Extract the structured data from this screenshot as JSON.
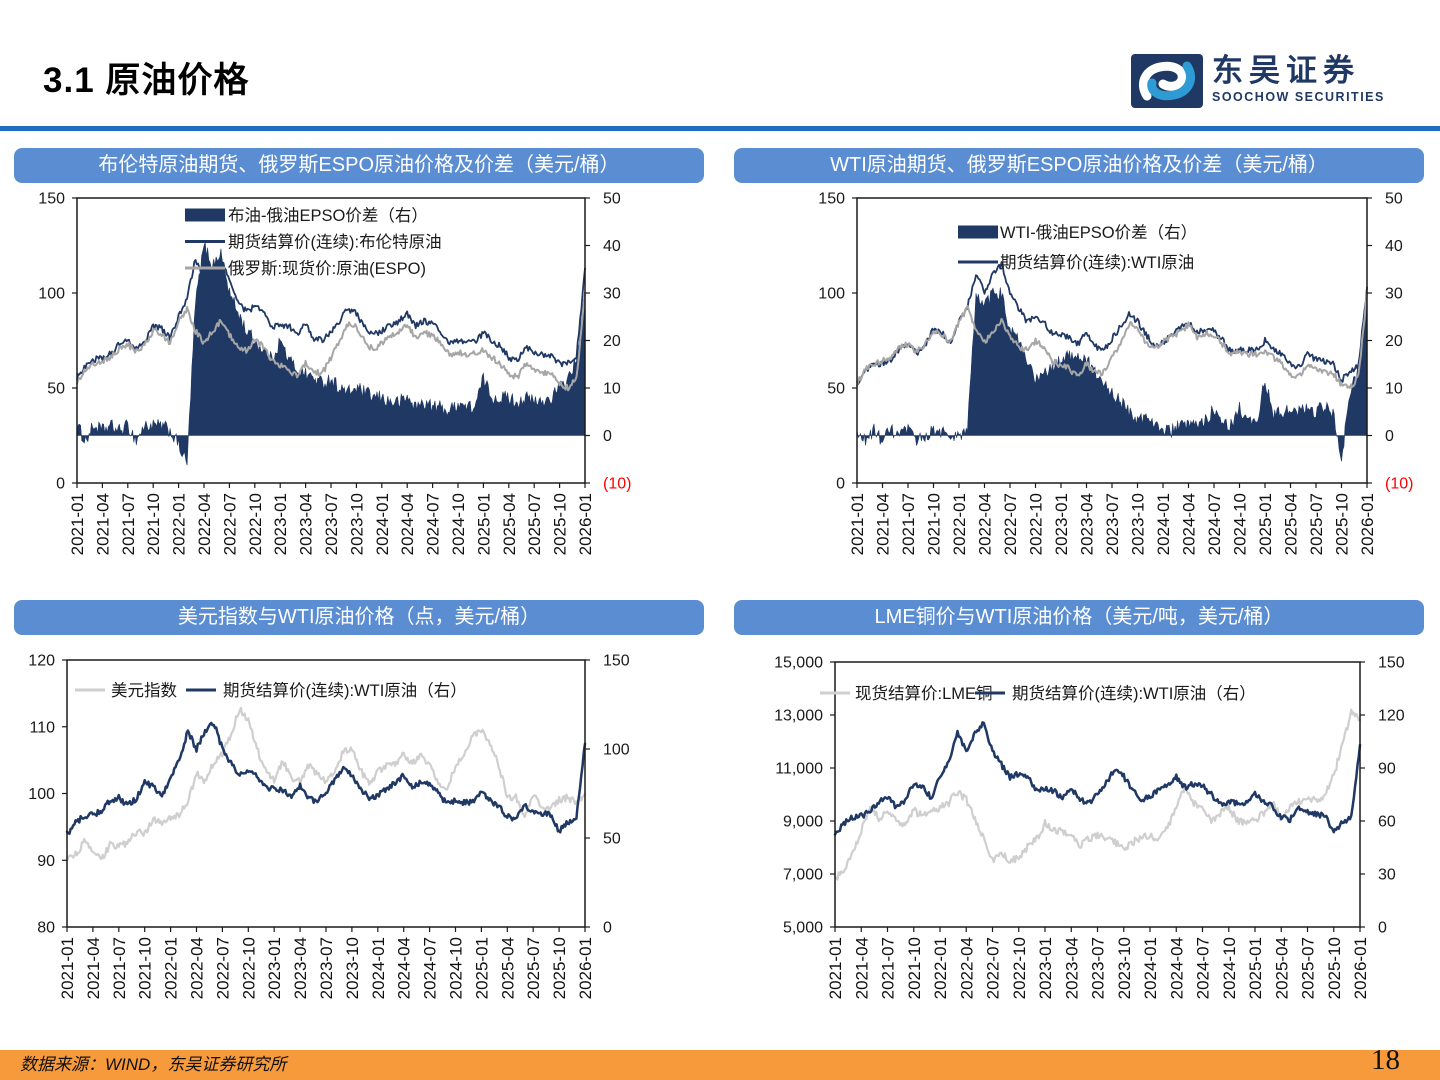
{
  "header": {
    "title": "3.1 原油价格",
    "logo": {
      "cn": "东吴证券",
      "en": "SOOCHOW SECURITIES"
    }
  },
  "footer": {
    "source": "数据来源：WIND，东吴证券研究所",
    "page": "18"
  },
  "colors": {
    "panel_title_bg": "#5B8DD3",
    "header_rule": "#1E6FC0",
    "footer_bg": "#F79A3C",
    "navy": "#1F3864",
    "gray_top": "#A6A6A6",
    "gray_bottom": "#CFCFCF",
    "negative_red": "#FF0000"
  },
  "months": [
    "2021-01",
    "2021-02",
    "2021-03",
    "2021-04",
    "2021-05",
    "2021-06",
    "2021-07",
    "2021-08",
    "2021-09",
    "2021-10",
    "2021-11",
    "2021-12",
    "2022-01",
    "2022-02",
    "2022-03",
    "2022-04",
    "2022-05",
    "2022-06",
    "2022-07",
    "2022-08",
    "2022-09",
    "2022-10",
    "2022-11",
    "2022-12",
    "2023-01",
    "2023-02",
    "2023-03",
    "2023-04",
    "2023-05",
    "2023-06",
    "2023-07",
    "2023-08",
    "2023-09",
    "2023-10",
    "2023-11",
    "2023-12",
    "2024-01",
    "2024-02",
    "2024-03",
    "2024-04",
    "2024-05",
    "2024-06",
    "2024-07",
    "2024-08",
    "2024-09",
    "2024-10",
    "2024-11",
    "2024-12",
    "2025-01",
    "2025-02",
    "2025-03",
    "2025-04",
    "2025-05",
    "2025-06",
    "2025-07",
    "2025-08",
    "2025-09",
    "2025-10",
    "2025-11",
    "2025-12",
    "2026-01"
  ],
  "chart_data": [
    {
      "type": "line+area",
      "title": "布伦特原油期货、俄罗斯ESPO原油价格及价差（美元/桶）",
      "x_tick_interval": 3,
      "legend_position": "inside-top-vertical",
      "left_axis": {
        "min": 0,
        "max": 150,
        "ticks": [
          {
            "v": 150,
            "label": "150"
          },
          {
            "v": 100,
            "label": "100"
          },
          {
            "v": 50,
            "label": "50"
          },
          {
            "v": 0,
            "label": "0"
          }
        ]
      },
      "right_axis": {
        "min": -10,
        "max": 50,
        "ticks": [
          {
            "v": 50,
            "label": "50"
          },
          {
            "v": 40,
            "label": "40"
          },
          {
            "v": 30,
            "label": "30"
          },
          {
            "v": 20,
            "label": "20"
          },
          {
            "v": 10,
            "label": "10"
          },
          {
            "v": 0,
            "label": "0"
          },
          {
            "v": -10,
            "label": "(10)",
            "color": "#FF0000"
          }
        ]
      },
      "series": [
        {
          "name": "布油-俄油EPSO价差（右）",
          "axis": "right",
          "type": "area",
          "color": "#1F3864",
          "values": [
            2,
            -1,
            2,
            1,
            2,
            1,
            2,
            -1,
            2,
            2,
            2,
            1,
            -2,
            -6,
            28,
            40,
            36,
            38,
            30,
            26,
            22,
            20,
            18,
            16,
            20,
            16,
            14,
            13,
            12,
            11,
            12,
            10,
            9,
            10,
            9,
            8,
            8,
            7,
            7,
            8,
            6,
            7,
            6,
            6,
            5,
            7,
            6,
            6,
            12,
            8,
            8,
            8,
            7,
            8,
            7,
            7,
            8,
            10,
            12,
            16,
            30
          ]
        },
        {
          "name": "期货结算价(连续):布伦特原油",
          "axis": "left",
          "type": "line",
          "color": "#1F3864",
          "values": [
            55,
            62,
            65,
            66,
            68,
            73,
            75,
            71,
            75,
            83,
            81,
            76,
            88,
            97,
            118,
            105,
            112,
            118,
            107,
            96,
            90,
            93,
            90,
            82,
            83,
            83,
            78,
            84,
            76,
            75,
            80,
            85,
            92,
            89,
            82,
            78,
            80,
            83,
            85,
            89,
            83,
            85,
            84,
            79,
            73,
            75,
            74,
            74,
            79,
            75,
            72,
            66,
            64,
            72,
            69,
            67,
            67,
            63,
            63,
            66,
            113
          ]
        },
        {
          "name": "俄罗斯:现货价:原油(ESPO)",
          "axis": "left",
          "type": "line",
          "color": "#A6A6A6",
          "values": [
            52,
            60,
            63,
            64,
            66,
            71,
            73,
            69,
            73,
            80,
            78,
            74,
            85,
            92,
            80,
            74,
            80,
            85,
            78,
            72,
            70,
            75,
            72,
            64,
            62,
            60,
            56,
            63,
            58,
            58,
            66,
            74,
            84,
            82,
            74,
            70,
            74,
            77,
            79,
            83,
            77,
            79,
            78,
            73,
            67,
            69,
            68,
            68,
            70,
            66,
            63,
            57,
            56,
            62,
            60,
            58,
            58,
            52,
            50,
            56,
            100
          ]
        }
      ]
    },
    {
      "type": "line+area",
      "title": "WTI原油期货、俄罗斯ESPO原油价格及价差（美元/桶）",
      "x_tick_interval": 3,
      "legend_position": "inside-top-vertical",
      "left_axis": {
        "min": 0,
        "max": 150,
        "ticks": [
          {
            "v": 150,
            "label": "150"
          },
          {
            "v": 100,
            "label": "100"
          },
          {
            "v": 50,
            "label": "50"
          },
          {
            "v": 0,
            "label": "0"
          }
        ]
      },
      "right_axis": {
        "min": -10,
        "max": 50,
        "ticks": [
          {
            "v": 50,
            "label": "50"
          },
          {
            "v": 40,
            "label": "40"
          },
          {
            "v": 30,
            "label": "30"
          },
          {
            "v": 20,
            "label": "20"
          },
          {
            "v": 10,
            "label": "10"
          },
          {
            "v": 0,
            "label": "0"
          },
          {
            "v": -10,
            "label": "(10)",
            "color": "#FF0000"
          }
        ]
      },
      "series": [
        {
          "name": "WTI-俄油EPSO价差（右）",
          "axis": "right",
          "type": "area",
          "color": "#1F3864",
          "values": [
            0,
            -1,
            1,
            -1,
            1,
            0,
            1,
            -1,
            0,
            1,
            1,
            -1,
            0,
            1,
            30,
            27,
            30,
            30,
            22,
            20,
            15,
            12,
            13,
            14,
            16,
            17,
            17,
            16,
            13,
            11,
            9,
            7,
            5,
            3,
            4,
            3,
            1,
            1,
            2,
            2,
            2,
            3,
            6,
            3,
            2,
            6,
            3,
            2,
            12,
            4,
            5,
            5,
            5,
            6,
            5,
            6,
            5,
            -5,
            9,
            14,
            28
          ]
        },
        {
          "name": "期货结算价(连续):WTI原油",
          "axis": "left",
          "type": "line",
          "color": "#1F3864",
          "values": [
            52,
            59,
            62,
            63,
            65,
            71,
            73,
            68,
            72,
            81,
            79,
            73,
            85,
            93,
            110,
            100,
            110,
            115,
            100,
            92,
            85,
            87,
            85,
            78,
            78,
            77,
            73,
            79,
            72,
            70,
            76,
            82,
            89,
            85,
            78,
            72,
            74,
            78,
            81,
            85,
            79,
            81,
            80,
            75,
            69,
            71,
            70,
            70,
            75,
            71,
            68,
            62,
            61,
            68,
            65,
            64,
            63,
            54,
            59,
            62,
            103
          ]
        },
        {
          "name": "俄罗斯:现货价:原油(ESPO)",
          "axis": "left",
          "type": "line",
          "color": "#A6A6A6",
          "legend": false,
          "values": [
            52,
            60,
            63,
            64,
            66,
            71,
            73,
            69,
            73,
            80,
            78,
            74,
            85,
            92,
            80,
            74,
            80,
            85,
            78,
            72,
            70,
            75,
            72,
            64,
            62,
            60,
            56,
            63,
            58,
            58,
            66,
            74,
            84,
            82,
            74,
            70,
            74,
            77,
            79,
            83,
            77,
            79,
            78,
            73,
            67,
            69,
            68,
            68,
            70,
            66,
            63,
            57,
            56,
            62,
            60,
            58,
            58,
            52,
            50,
            56,
            100
          ]
        }
      ]
    },
    {
      "type": "line",
      "title": "美元指数与WTI原油价格（点，美元/桶）",
      "x_tick_interval": 3,
      "legend_position": "inside-top-horizontal",
      "left_axis": {
        "min": 80,
        "max": 120,
        "ticks": [
          {
            "v": 120,
            "label": "120"
          },
          {
            "v": 110,
            "label": "110"
          },
          {
            "v": 100,
            "label": "100"
          },
          {
            "v": 90,
            "label": "90"
          },
          {
            "v": 80,
            "label": "80"
          }
        ]
      },
      "right_axis": {
        "min": 0,
        "max": 150,
        "ticks": [
          {
            "v": 150,
            "label": "150"
          },
          {
            "v": 100,
            "label": "100"
          },
          {
            "v": 50,
            "label": "50"
          },
          {
            "v": 0,
            "label": "0"
          }
        ]
      },
      "series": [
        {
          "name": "美元指数",
          "axis": "left",
          "type": "line",
          "color": "#CFCFCF",
          "values": [
            90.2,
            90.9,
            92.7,
            91.3,
            90.0,
            92.4,
            92.0,
            92.6,
            94.2,
            94.1,
            96.0,
            95.7,
            96.5,
            96.7,
            98.8,
            103.0,
            101.8,
            104.7,
            105.9,
            108.8,
            112.8,
            111.0,
            106.7,
            103.5,
            102.1,
            104.9,
            102.5,
            101.7,
            104.2,
            102.9,
            101.9,
            103.6,
            106.2,
            106.7,
            103.5,
            101.3,
            103.3,
            104.1,
            104.5,
            105.9,
            104.6,
            105.8,
            104.1,
            101.7,
            100.8,
            104.0,
            105.7,
            108.5,
            109.6,
            107.6,
            104.2,
            99.5,
            99.4,
            96.9,
            99.8,
            97.8,
            97.9,
            99.0,
            99.4,
            98.5,
            100.0
          ]
        },
        {
          "name": "期货结算价(连续):WTI原油（右）",
          "axis": "right",
          "type": "line",
          "color": "#1F3864",
          "values": [
            52,
            59,
            62,
            63,
            65,
            71,
            73,
            68,
            72,
            81,
            79,
            73,
            85,
            93,
            110,
            100,
            110,
            115,
            100,
            92,
            85,
            87,
            85,
            78,
            78,
            77,
            73,
            79,
            72,
            70,
            76,
            82,
            89,
            85,
            78,
            72,
            74,
            78,
            81,
            85,
            79,
            81,
            80,
            75,
            69,
            71,
            70,
            70,
            75,
            71,
            68,
            62,
            61,
            68,
            65,
            64,
            63,
            54,
            59,
            62,
            103
          ]
        }
      ]
    },
    {
      "type": "line",
      "title": "LME铜价与WTI原油价格（美元/吨，美元/桶）",
      "x_tick_interval": 3,
      "legend_position": "inside-top-horizontal",
      "left_axis": {
        "min": 5000,
        "max": 15000,
        "ticks": [
          {
            "v": 15000,
            "label": "15,000"
          },
          {
            "v": 13000,
            "label": "13,000"
          },
          {
            "v": 11000,
            "label": "11,000"
          },
          {
            "v": 9000,
            "label": "9,000"
          },
          {
            "v": 7000,
            "label": "7,000"
          },
          {
            "v": 5000,
            "label": "5,000"
          }
        ]
      },
      "right_axis": {
        "min": 0,
        "max": 150,
        "ticks": [
          {
            "v": 150,
            "label": "150"
          },
          {
            "v": 120,
            "label": "120"
          },
          {
            "v": 90,
            "label": "90"
          },
          {
            "v": 60,
            "label": "60"
          },
          {
            "v": 30,
            "label": "30"
          },
          {
            "v": 0,
            "label": "0"
          }
        ]
      },
      "series": [
        {
          "name": "现货结算价:LME铜",
          "axis": "left",
          "type": "line",
          "color": "#CFCFCF",
          "values": [
            6800,
            7200,
            7800,
            8600,
            9600,
            9100,
            9300,
            9100,
            8800,
            9400,
            9200,
            9300,
            9500,
            9700,
            10100,
            9800,
            9100,
            8300,
            7500,
            7800,
            7500,
            7600,
            8000,
            8300,
            8900,
            8700,
            8600,
            8500,
            8100,
            8300,
            8500,
            8400,
            8200,
            7900,
            8200,
            8400,
            8400,
            8300,
            8700,
            9500,
            10300,
            9700,
            9400,
            9000,
            9300,
            9500,
            9000,
            8900,
            9000,
            9300,
            9700,
            9100,
            9500,
            9700,
            9800,
            9800,
            10000,
            10700,
            11900,
            13100,
            12800
          ]
        },
        {
          "name": "期货结算价(连续):WTI原油（右）",
          "axis": "right",
          "type": "line",
          "color": "#1F3864",
          "values": [
            52,
            59,
            62,
            63,
            65,
            71,
            73,
            68,
            72,
            81,
            79,
            73,
            85,
            93,
            110,
            100,
            110,
            115,
            100,
            92,
            85,
            87,
            85,
            78,
            78,
            77,
            73,
            79,
            72,
            70,
            76,
            82,
            89,
            85,
            78,
            72,
            74,
            78,
            81,
            85,
            79,
            81,
            80,
            75,
            69,
            71,
            70,
            70,
            75,
            71,
            68,
            62,
            61,
            68,
            65,
            64,
            63,
            54,
            59,
            62,
            103
          ]
        }
      ]
    }
  ]
}
